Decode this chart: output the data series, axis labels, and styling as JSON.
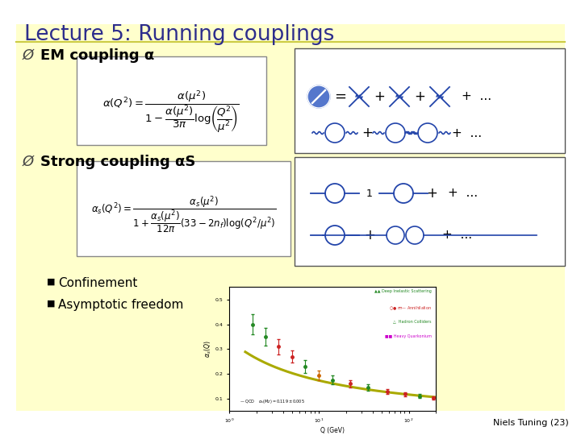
{
  "title": "Lecture 5: Running couplings",
  "title_color": "#2d2d8c",
  "background_color": "#ffffff",
  "slide_bg_color": "#ffffcc",
  "em_bullet": " EM coupling α",
  "strong_bullet": " Strong coupling αS",
  "section_color": "#000000",
  "confinement_text": "Confinement",
  "asymptotic_text": "Asymptotic freedom",
  "footer_text": "Niels Tuning (23)",
  "footer_color": "#000000",
  "diagram_color": "#2244aa",
  "bullet_arrow": "Ø"
}
